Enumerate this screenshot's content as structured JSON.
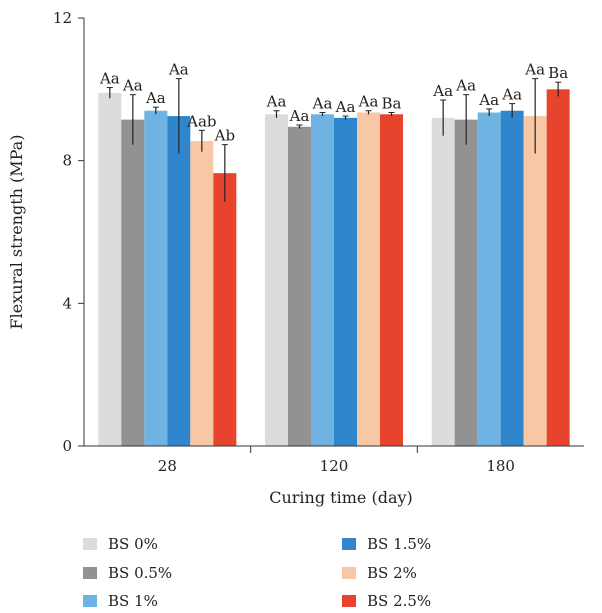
{
  "chart_data": {
    "type": "bar",
    "title": "",
    "xlabel": "Curing time (day)",
    "ylabel": "Flexural strength (MPa)",
    "ylim": [
      0,
      12
    ],
    "yticks": [
      "0",
      "4",
      "8",
      "12"
    ],
    "categories": [
      "28",
      "120",
      "180"
    ],
    "grid": false,
    "legend_position": "bottom",
    "series": [
      {
        "name": "BS 0%",
        "color": "#dcdcdc",
        "values": [
          9.9,
          9.3,
          9.2
        ],
        "errors": [
          0.15,
          0.1,
          0.5
        ],
        "labels": [
          "Aa",
          "Aa",
          "Aa"
        ]
      },
      {
        "name": "BS 0.5%",
        "color": "#929292",
        "values": [
          9.15,
          8.95,
          9.15
        ],
        "errors": [
          0.7,
          0.05,
          0.7
        ],
        "labels": [
          "Aa",
          "Aa",
          "Aa"
        ]
      },
      {
        "name": "BS 1%",
        "color": "#6fb3e3",
        "values": [
          9.4,
          9.3,
          9.35
        ],
        "errors": [
          0.1,
          0.05,
          0.1
        ],
        "labels": [
          "Aa",
          "Aa",
          "Aa"
        ]
      },
      {
        "name": "BS 1.5%",
        "color": "#2f86cc",
        "values": [
          9.25,
          9.2,
          9.4
        ],
        "errors": [
          1.05,
          0.05,
          0.2
        ],
        "labels": [
          "Aa",
          "Aa",
          "Aa"
        ]
      },
      {
        "name": "BS 2%",
        "color": "#f8c7a6",
        "values": [
          8.55,
          9.35,
          9.25
        ],
        "errors": [
          0.3,
          0.05,
          1.05
        ],
        "labels": [
          "Aab",
          "Aa",
          "Aa"
        ]
      },
      {
        "name": "BS 2.5%",
        "color": "#e8432c",
        "values": [
          7.65,
          9.3,
          10.0
        ],
        "errors": [
          0.8,
          0.05,
          0.2
        ],
        "labels": [
          "Ab",
          "Ba",
          "Ba"
        ]
      }
    ]
  }
}
